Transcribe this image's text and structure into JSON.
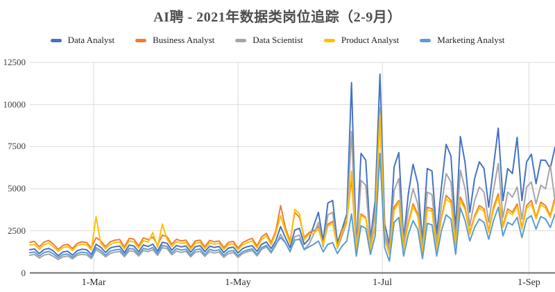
{
  "title": "AI聘 - 2021年数据类岗位追踪（2-9月）",
  "chart_data": {
    "type": "line",
    "title": "AI聘 - 2021年数据类岗位追踪（2-9月）",
    "x_axis": {
      "description": "daily dates Feb 2 - Sep 12 2021, sampled every 2 days",
      "start_day": 0,
      "step_days": 2,
      "end_day": 222,
      "tick_days": [
        27,
        88,
        149,
        211
      ],
      "tick_labels": [
        "1-Mar",
        "1-May",
        "1-Jul",
        "1-Sep"
      ]
    },
    "y_axis": {
      "min": 0,
      "max": 12500,
      "tick_step": 2500,
      "tick_labels": [
        "0",
        "2500",
        "5000",
        "7500",
        "10000",
        "12500"
      ]
    },
    "grid": true,
    "legend_position": "top",
    "series": [
      {
        "name": "Data Analyst",
        "color": "#4472C4",
        "values": [
          1380,
          1420,
          1150,
          1390,
          1460,
          1300,
          1020,
          1240,
          1290,
          1060,
          1320,
          1410,
          1380,
          1090,
          1700,
          1520,
          1220,
          1480,
          1560,
          1590,
          1210,
          1650,
          1600,
          1260,
          1660,
          1570,
          1710,
          1300,
          1820,
          1760,
          1350,
          1630,
          1550,
          1600,
          1230,
          1560,
          1620,
          1260,
          1590,
          1510,
          1570,
          1210,
          1480,
          1530,
          1190,
          1450,
          1560,
          1620,
          1280,
          1700,
          1840,
          1450,
          1910,
          2750,
          2100,
          1500,
          2550,
          2650,
          1700,
          2000,
          2800,
          3600,
          1900,
          4150,
          4300,
          1800,
          2600,
          3500,
          11300,
          1400,
          7100,
          6700,
          2000,
          4300,
          11800,
          2900,
          1700,
          6300,
          7150,
          2000,
          4700,
          6450,
          5300,
          1900,
          6200,
          6050,
          2300,
          5100,
          7630,
          6950,
          2600,
          8100,
          6540,
          3600,
          5600,
          6600,
          6200,
          3900,
          6300,
          8600,
          4300,
          6200,
          5900,
          8050,
          4300,
          6600,
          7050,
          5300,
          6700,
          6680,
          6200,
          7470
        ]
      },
      {
        "name": "Business Analyst",
        "color": "#ED7D31",
        "values": [
          1820,
          1870,
          1550,
          1830,
          1930,
          1700,
          1400,
          1630,
          1700,
          1450,
          1750,
          1850,
          1810,
          1480,
          2100,
          1900,
          1560,
          1850,
          1950,
          1980,
          1550,
          2050,
          2000,
          1600,
          2080,
          1980,
          2130,
          1650,
          2250,
          2150,
          1700,
          2000,
          1900,
          1950,
          1520,
          1900,
          1950,
          1550,
          1930,
          1850,
          1900,
          1500,
          1820,
          1870,
          1480,
          1800,
          1950,
          2050,
          1600,
          2150,
          2350,
          1800,
          2500,
          4000,
          2700,
          1900,
          3600,
          3300,
          2100,
          2400,
          2500,
          2750,
          1750,
          2900,
          3050,
          1600,
          2500,
          3100,
          5600,
          1500,
          3500,
          3300,
          1500,
          2800,
          9200,
          2100,
          1200,
          3900,
          4300,
          1500,
          3000,
          4100,
          3500,
          1300,
          3900,
          3800,
          1500,
          3300,
          4600,
          4300,
          1700,
          4500,
          3900,
          2400,
          3400,
          4000,
          3800,
          2500,
          3900,
          4700,
          2800,
          3800,
          3600,
          4100,
          2700,
          4000,
          4300,
          3300,
          4200,
          4000,
          3400,
          4500
        ]
      },
      {
        "name": "Data Scientist",
        "color": "#A5A5A5",
        "values": [
          1050,
          1100,
          880,
          1060,
          1120,
          980,
          790,
          950,
          1000,
          830,
          1040,
          1100,
          1070,
          850,
          1380,
          1200,
          950,
          1150,
          1240,
          1270,
          960,
          1310,
          1280,
          1000,
          1330,
          1260,
          1380,
          1040,
          1500,
          1440,
          1080,
          1300,
          1220,
          1280,
          950,
          1230,
          1280,
          980,
          1260,
          1180,
          1240,
          930,
          1150,
          1210,
          920,
          1150,
          1260,
          1330,
          1010,
          1400,
          1550,
          1180,
          1650,
          2300,
          1800,
          1250,
          2150,
          2250,
          1400,
          1700,
          2300,
          3000,
          1550,
          3450,
          3600,
          1450,
          2200,
          3000,
          8400,
          1300,
          5500,
          5200,
          1700,
          3600,
          9800,
          2400,
          1400,
          4900,
          5600,
          1800,
          3700,
          5000,
          4100,
          1550,
          4800,
          4650,
          1800,
          4000,
          5900,
          5400,
          2000,
          6100,
          5000,
          2800,
          4300,
          5100,
          4800,
          3000,
          4900,
          6500,
          3300,
          4800,
          4500,
          5100,
          3200,
          5100,
          5400,
          4100,
          5200,
          5000,
          6400,
          4300
        ]
      },
      {
        "name": "Product Analyst",
        "color": "#FFC000",
        "values": [
          1650,
          1700,
          1400,
          1680,
          1780,
          1550,
          1280,
          1500,
          1560,
          1330,
          1620,
          1700,
          1670,
          1370,
          3350,
          1750,
          1430,
          1700,
          1800,
          1830,
          1420,
          1900,
          1850,
          1470,
          1920,
          1830,
          2400,
          1520,
          2900,
          2000,
          1570,
          1850,
          1760,
          1800,
          1400,
          1760,
          1800,
          1430,
          1790,
          1710,
          1760,
          1390,
          1690,
          1730,
          1370,
          1670,
          1800,
          1900,
          1480,
          2000,
          2200,
          1670,
          2350,
          3400,
          2500,
          1750,
          3780,
          3500,
          1950,
          2300,
          2350,
          2600,
          1650,
          2800,
          2950,
          1500,
          2400,
          3000,
          6050,
          1400,
          3400,
          3250,
          1400,
          2750,
          9400,
          2000,
          1100,
          3700,
          4200,
          1400,
          2900,
          3950,
          3350,
          1200,
          3750,
          3650,
          1400,
          3200,
          4400,
          4150,
          1600,
          4300,
          3750,
          2300,
          3300,
          3850,
          3650,
          2400,
          3750,
          4500,
          2700,
          3650,
          3450,
          3950,
          2600,
          3850,
          4100,
          3200,
          4050,
          3850,
          3300,
          4300
        ]
      },
      {
        "name": "Marketing Analyst",
        "color": "#5B9BD5",
        "values": [
          1200,
          1240,
          1000,
          1210,
          1280,
          1130,
          900,
          1080,
          1120,
          930,
          1150,
          1230,
          1200,
          950,
          1500,
          1330,
          1060,
          1290,
          1370,
          1400,
          1070,
          1450,
          1410,
          1110,
          1460,
          1390,
          1510,
          1150,
          1630,
          1570,
          1190,
          1440,
          1360,
          1410,
          1060,
          1370,
          1420,
          1090,
          1400,
          1320,
          1370,
          1040,
          1280,
          1330,
          1020,
          1260,
          1360,
          1430,
          1100,
          1500,
          1640,
          1250,
          1720,
          2100,
          1800,
          1280,
          1950,
          2000,
          1380,
          1550,
          1700,
          1900,
          1250,
          1700,
          1800,
          1150,
          1600,
          1900,
          3500,
          1000,
          2800,
          2650,
          1100,
          2200,
          7100,
          1500,
          700,
          3000,
          3300,
          1000,
          2300,
          3100,
          2600,
          850,
          2950,
          2850,
          1000,
          2500,
          3450,
          3200,
          1100,
          3870,
          3100,
          1900,
          2700,
          3200,
          3000,
          2000,
          3100,
          3900,
          2200,
          3000,
          2850,
          3300,
          2100,
          3200,
          3400,
          2600,
          3350,
          3200,
          2700,
          3500
        ]
      }
    ]
  },
  "style": {
    "grid_color": "#d9d9d9",
    "axis_color": "#6e6e6e",
    "title_color": "#4d4d4d"
  }
}
